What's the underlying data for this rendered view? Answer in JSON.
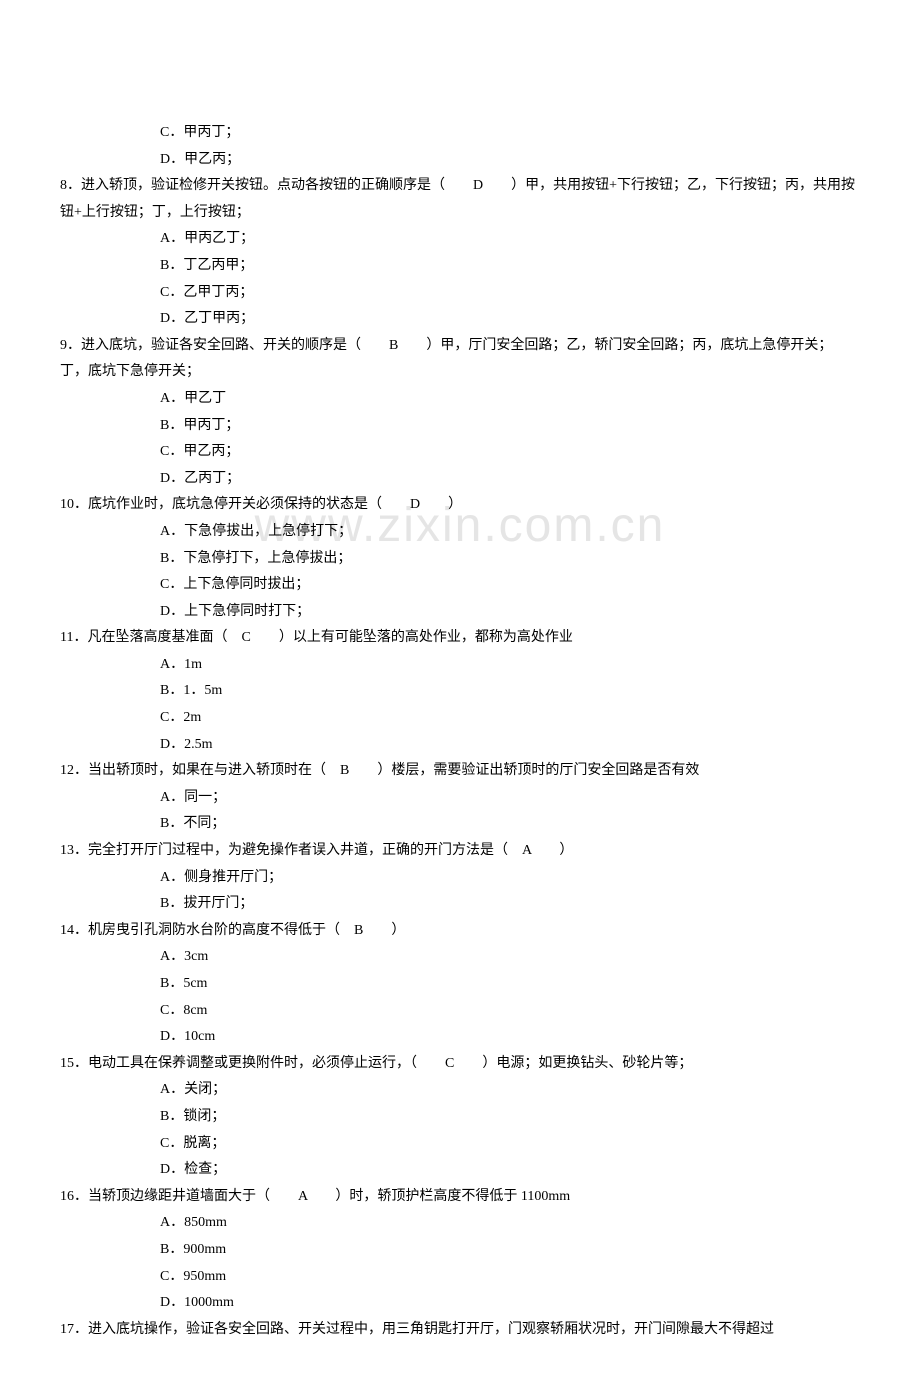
{
  "watermark": "www.zixin.com.cn",
  "lines": [
    {
      "type": "option",
      "text": "C．甲丙丁；"
    },
    {
      "type": "option",
      "text": "D．甲乙丙；"
    },
    {
      "type": "question",
      "text": "8．进入轿顶，验证检修开关按钮。点动各按钮的正确顺序是（　　D　　）甲，共用按钮+下行按钮；乙，下行按钮；丙，共用按钮+上行按钮；丁，上行按钮；"
    },
    {
      "type": "option",
      "text": "A．甲丙乙丁；"
    },
    {
      "type": "option",
      "text": "B．丁乙丙甲；"
    },
    {
      "type": "option",
      "text": "C．乙甲丁丙；"
    },
    {
      "type": "option",
      "text": "D．乙丁甲丙；"
    },
    {
      "type": "question",
      "text": "9．进入底坑，验证各安全回路、开关的顺序是（　　B　　）甲，厅门安全回路；乙，轿门安全回路；丙，底坑上急停开关；丁，底坑下急停开关；"
    },
    {
      "type": "option",
      "text": "A．甲乙丁"
    },
    {
      "type": "option",
      "text": "B．甲丙丁；"
    },
    {
      "type": "option",
      "text": "C．甲乙丙；"
    },
    {
      "type": "option",
      "text": "D．乙丙丁；"
    },
    {
      "type": "question",
      "text": "10．底坑作业时，底坑急停开关必须保持的状态是（　　D　　）"
    },
    {
      "type": "option",
      "text": "A．下急停拔出，上急停打下；"
    },
    {
      "type": "option",
      "text": "B．下急停打下，上急停拔出；"
    },
    {
      "type": "option",
      "text": "C．上下急停同时拔出；"
    },
    {
      "type": "option",
      "text": "D．上下急停同时打下；"
    },
    {
      "type": "question",
      "text": "11．凡在坠落高度基准面（　C　　）以上有可能坠落的高处作业，都称为高处作业"
    },
    {
      "type": "option",
      "text": "A．1m"
    },
    {
      "type": "option",
      "text": "B．1．5m"
    },
    {
      "type": "option",
      "text": "C．2m"
    },
    {
      "type": "option",
      "text": "D．2.5m"
    },
    {
      "type": "question",
      "text": "12．当出轿顶时，如果在与进入轿顶时在（　B　　）楼层，需要验证出轿顶时的厅门安全回路是否有效"
    },
    {
      "type": "option",
      "text": "A．同一；"
    },
    {
      "type": "option",
      "text": "B．不同；"
    },
    {
      "type": "question",
      "text": "13．完全打开厅门过程中，为避免操作者误入井道，正确的开门方法是（　A　　）"
    },
    {
      "type": "option",
      "text": "A．侧身推开厅门；"
    },
    {
      "type": "option",
      "text": "B．拔开厅门；"
    },
    {
      "type": "question",
      "text": "14．机房曳引孔洞防水台阶的高度不得低于（　B　　）"
    },
    {
      "type": "option",
      "text": "A．3cm"
    },
    {
      "type": "option",
      "text": "B．5cm"
    },
    {
      "type": "option",
      "text": "C．8cm"
    },
    {
      "type": "option",
      "text": "D．10cm"
    },
    {
      "type": "question",
      "text": "15．电动工具在保养调整或更换附件时，必须停止运行，（　　C　　）电源；如更换钻头、砂轮片等；"
    },
    {
      "type": "option",
      "text": "A．关闭；"
    },
    {
      "type": "option",
      "text": "B．锁闭；"
    },
    {
      "type": "option",
      "text": "C．脱离；"
    },
    {
      "type": "option",
      "text": "D．检查；"
    },
    {
      "type": "question",
      "text": "16．当轿顶边缘距井道墙面大于（　　A　　）时，轿顶护栏高度不得低于 1100mm"
    },
    {
      "type": "option",
      "text": "A．850mm"
    },
    {
      "type": "option",
      "text": "B．900mm"
    },
    {
      "type": "option",
      "text": "C．950mm"
    },
    {
      "type": "option",
      "text": "D．1000mm"
    },
    {
      "type": "question",
      "text": "17．进入底坑操作，验证各安全回路、开关过程中，用三角钥匙打开厅，门观察轿厢状况时，开门间隙最大不得超过"
    }
  ]
}
